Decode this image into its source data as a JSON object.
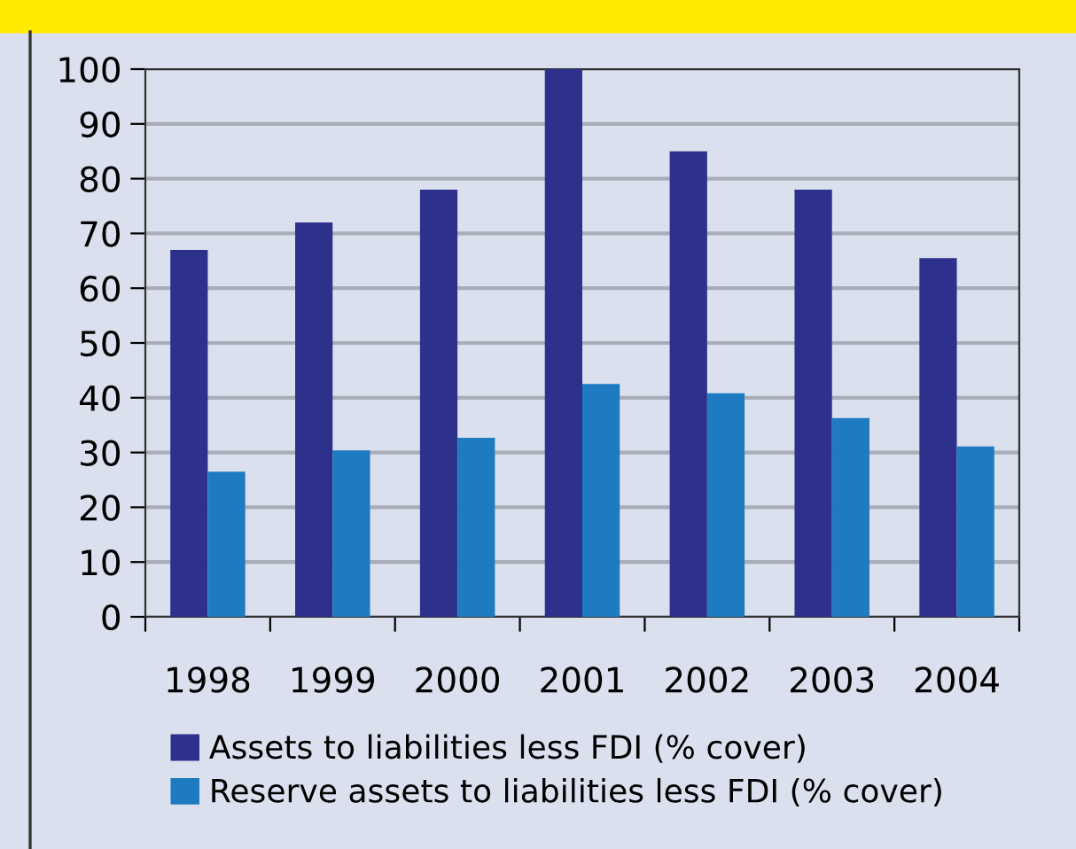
{
  "chart_data": {
    "type": "bar",
    "categories": [
      "1998",
      "1999",
      "2000",
      "2001",
      "2002",
      "2003",
      "2004"
    ],
    "series": [
      {
        "name": "Assets to liabilities less FDI (% cover)",
        "color": "#2e318c",
        "values": [
          67,
          72,
          78,
          100,
          85,
          78,
          65.5
        ]
      },
      {
        "name": "Reserve assets to liabilities less FDI (% cover)",
        "color": "#1f7bc1",
        "values": [
          26.5,
          30.4,
          32.7,
          42.5,
          40.8,
          36.3,
          31.1
        ]
      }
    ],
    "ylim": [
      0,
      100
    ],
    "yticks": [
      0,
      10,
      20,
      30,
      40,
      50,
      60,
      70,
      80,
      90,
      100
    ],
    "grid": "y",
    "legend": "bottom"
  }
}
